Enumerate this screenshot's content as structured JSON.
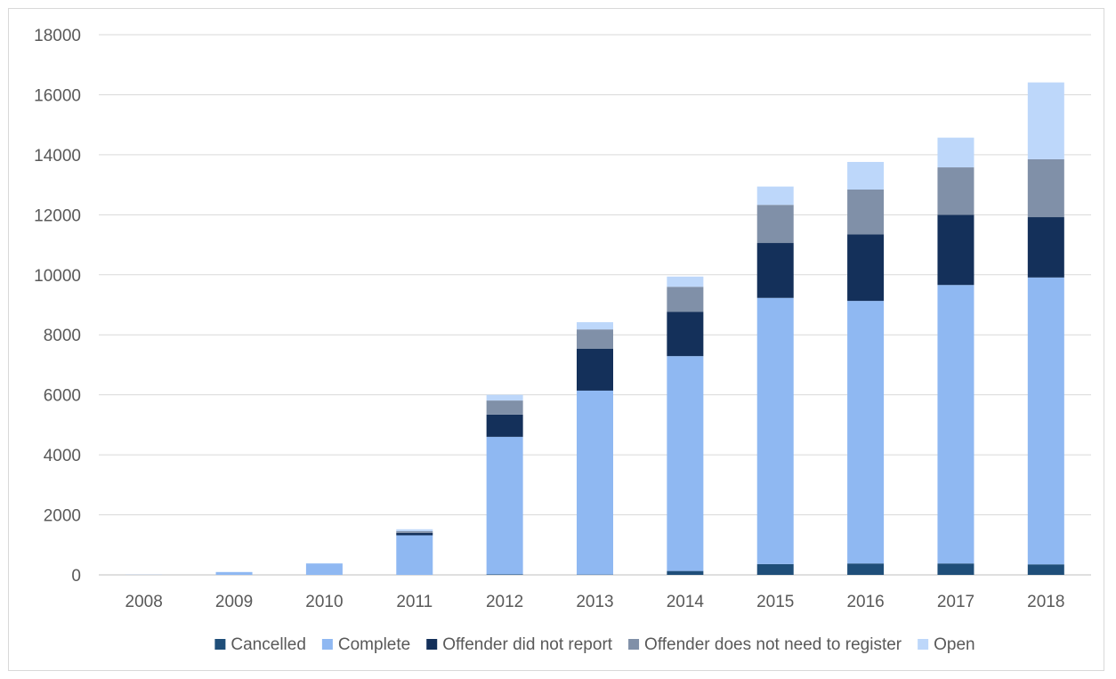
{
  "chart_data": {
    "type": "bar",
    "stacked": true,
    "title": "",
    "xlabel": "",
    "ylabel": "",
    "categories": [
      "2008",
      "2009",
      "2010",
      "2011",
      "2012",
      "2013",
      "2014",
      "2015",
      "2016",
      "2017",
      "2018"
    ],
    "ylim": [
      0,
      18000
    ],
    "yticks": [
      "0",
      "2000",
      "4000",
      "6000",
      "8000",
      "10000",
      "12000",
      "14000",
      "16000",
      "18000"
    ],
    "grid": true,
    "legend_position": "bottom",
    "series": [
      {
        "name": "Cancelled",
        "color": "#1f4e79",
        "values": [
          0,
          0,
          0,
          0,
          20,
          10,
          130,
          360,
          380,
          380,
          350
        ]
      },
      {
        "name": "Complete",
        "color": "#8fb8f2",
        "values": [
          5,
          90,
          380,
          1320,
          4580,
          6130,
          7160,
          8870,
          8750,
          9280,
          9560
        ]
      },
      {
        "name": "Offender did not report",
        "color": "#14305a",
        "values": [
          0,
          0,
          0,
          80,
          740,
          1400,
          1480,
          1830,
          2220,
          2340,
          2010
        ]
      },
      {
        "name": "Offender does not need to register",
        "color": "#8090a8",
        "values": [
          0,
          0,
          0,
          60,
          470,
          640,
          830,
          1270,
          1490,
          1580,
          1930
        ]
      },
      {
        "name": "Open",
        "color": "#bdd7fa",
        "values": [
          0,
          10,
          10,
          60,
          190,
          240,
          340,
          610,
          920,
          990,
          2560
        ]
      }
    ]
  }
}
